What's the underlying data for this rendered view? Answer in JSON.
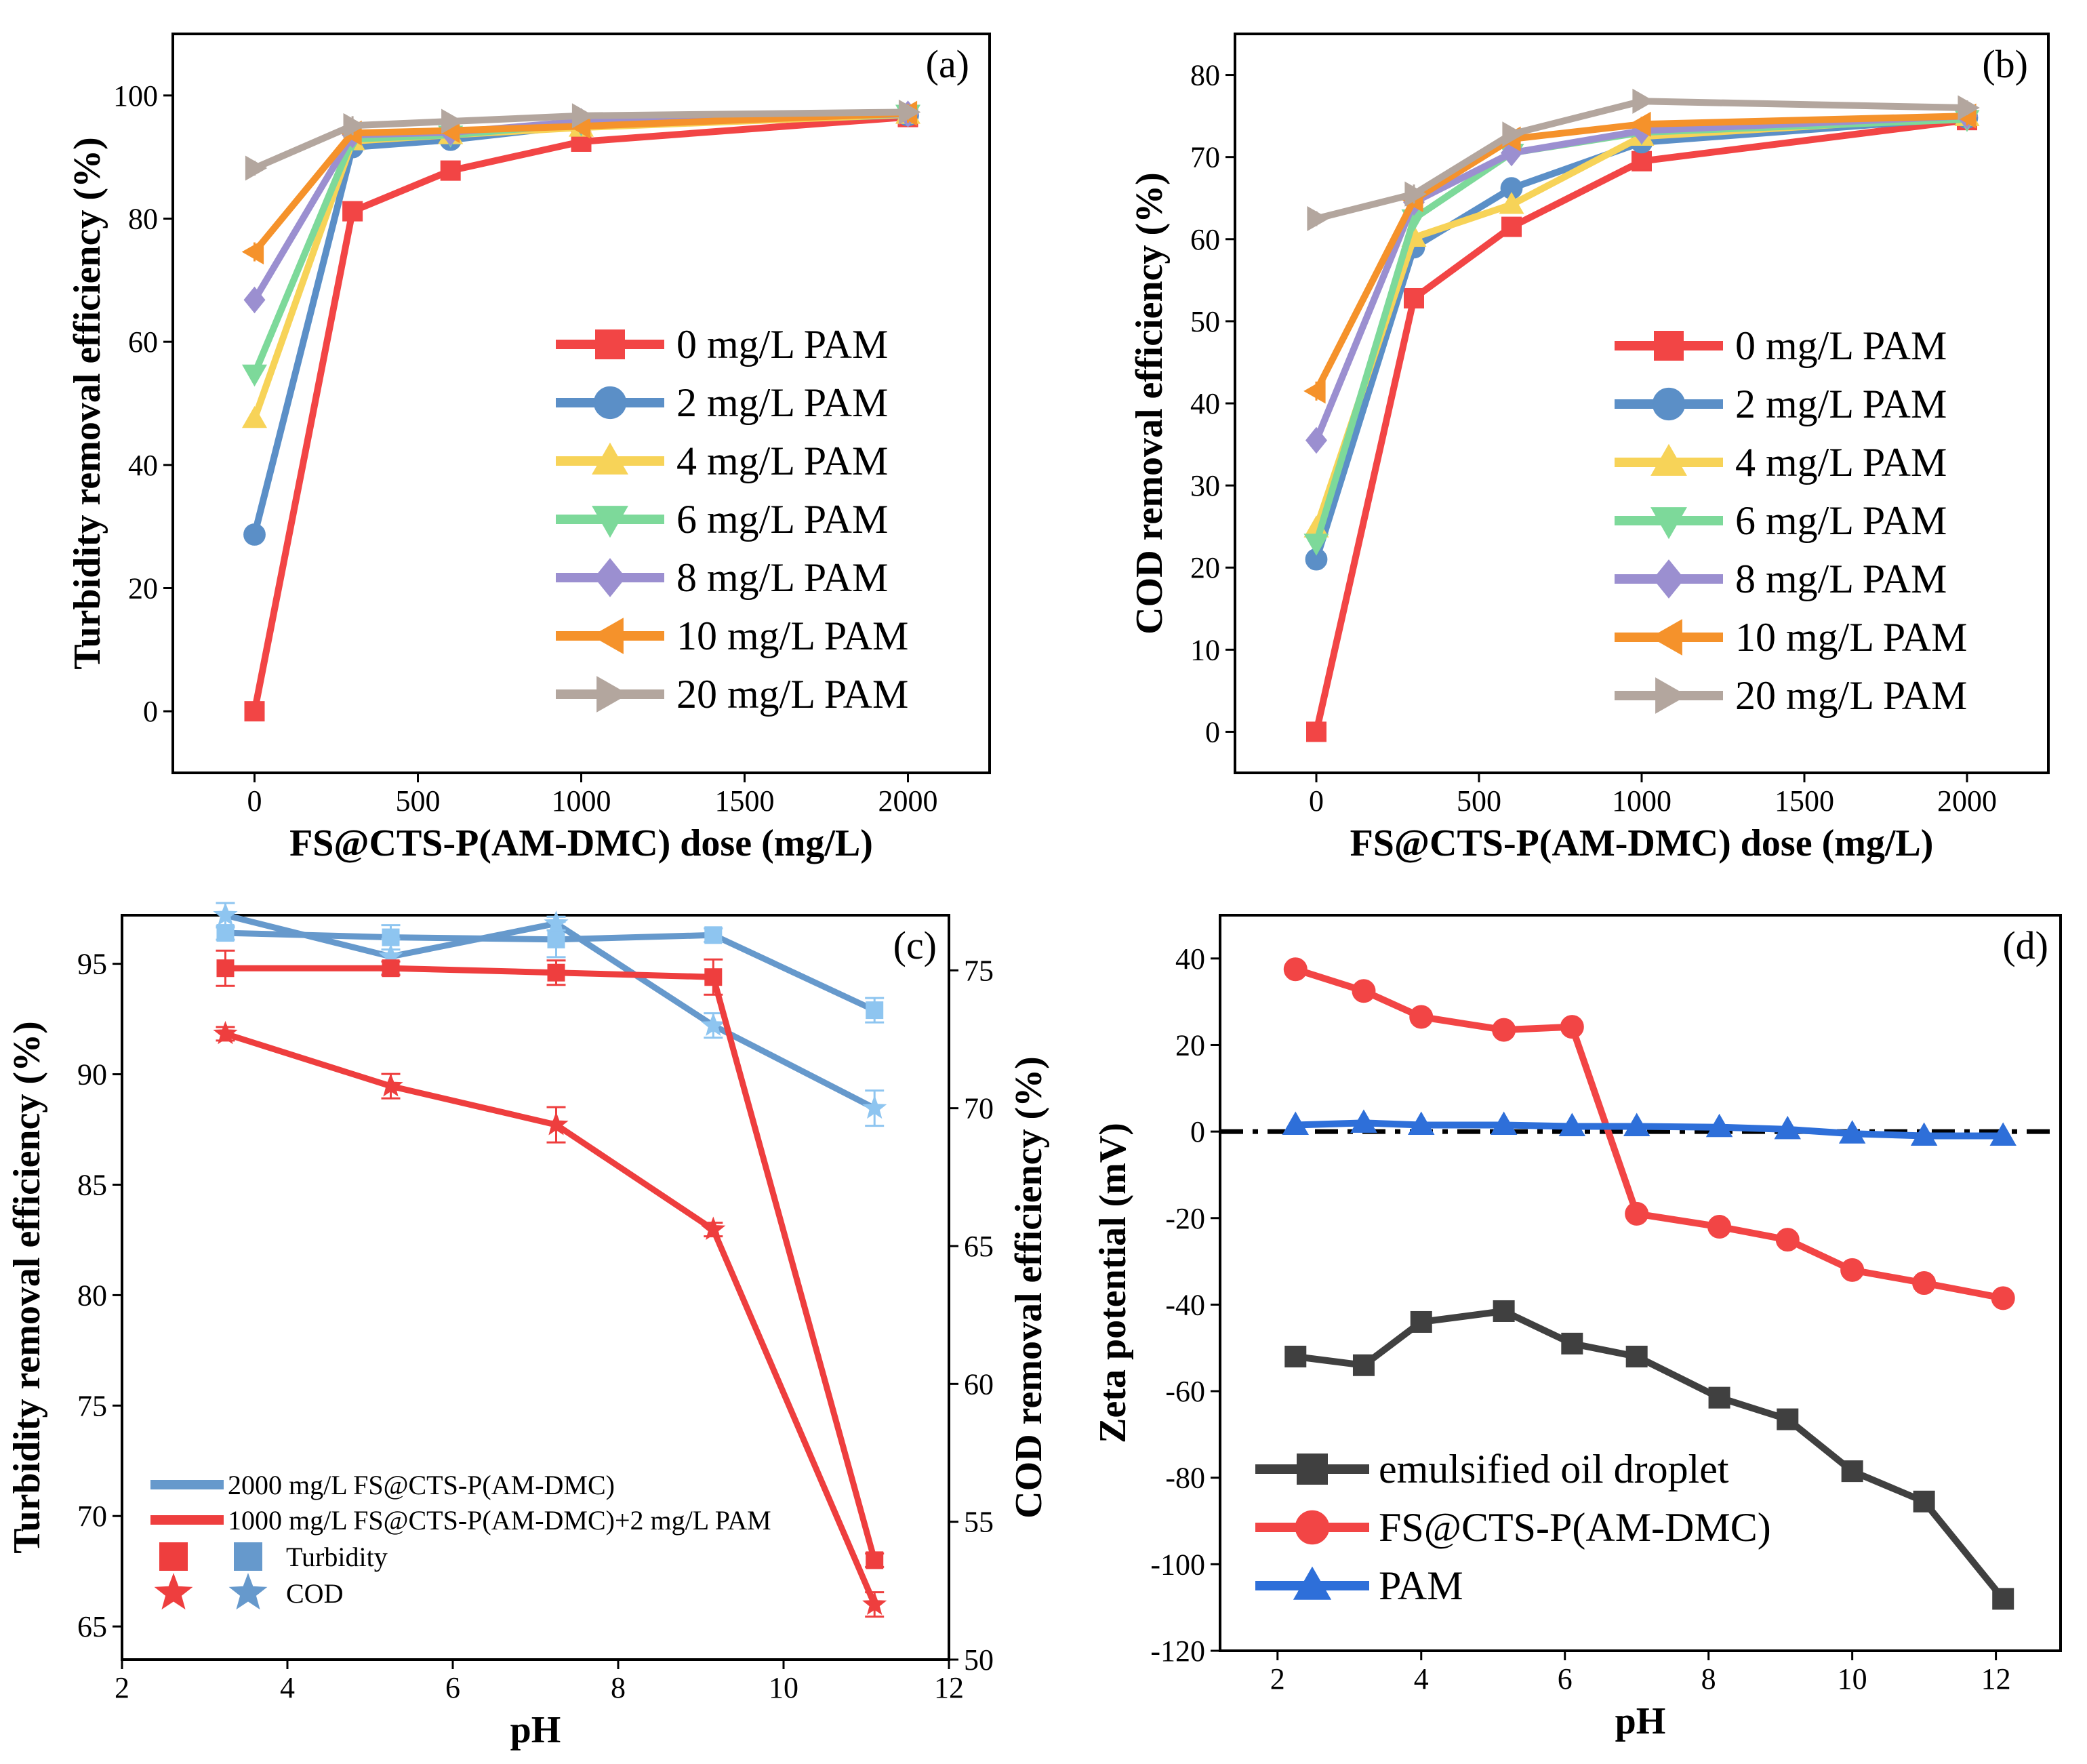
{
  "chart_data": [
    {
      "panel": "(a)",
      "type": "line",
      "xlabel": "FS@CTS-P(AM-DMC) dose (mg/L)",
      "ylabel": "Turbidity removal efficiency (%)",
      "xlim": [
        -250,
        2250
      ],
      "ylim": [
        -10,
        110
      ],
      "xticks": [
        0,
        500,
        1000,
        1500,
        2000
      ],
      "yticks": [
        0,
        20,
        40,
        60,
        80,
        100
      ],
      "x": [
        0,
        300,
        600,
        1000,
        2000
      ],
      "legend_position": "center-right",
      "series": [
        {
          "name": "0 mg/L   PAM",
          "color": "#F24545",
          "marker": "square",
          "values": [
            0,
            81.2,
            87.8,
            92.5,
            96.5
          ]
        },
        {
          "name": "2 mg/L   PAM",
          "color": "#5B8FC7",
          "marker": "circle",
          "values": [
            28.7,
            91.6,
            92.8,
            95.2,
            96.8
          ]
        },
        {
          "name": "4 mg/L   PAM",
          "color": "#F7D358",
          "marker": "triangle-up",
          "values": [
            47.5,
            92.6,
            93.6,
            94.8,
            96.9
          ]
        },
        {
          "name": "6 mg/L   PAM",
          "color": "#7DD99A",
          "marker": "triangle-down",
          "values": [
            54.8,
            92.9,
            93.6,
            95.4,
            97.0
          ]
        },
        {
          "name": "8 mg/L   PAM",
          "color": "#9B8FD0",
          "marker": "diamond",
          "values": [
            66.8,
            93.6,
            94.0,
            95.8,
            97.0
          ]
        },
        {
          "name": "10 mg/L PAM",
          "color": "#F5922B",
          "marker": "triangle-left",
          "values": [
            74.6,
            93.9,
            94.3,
            95.0,
            97.1
          ]
        },
        {
          "name": "20 mg/L PAM",
          "color": "#B3A69E",
          "marker": "triangle-right",
          "values": [
            88.2,
            95.1,
            95.8,
            96.7,
            97.3
          ]
        }
      ]
    },
    {
      "panel": "(b)",
      "type": "line",
      "xlabel": "FS@CTS-P(AM-DMC) dose (mg/L)",
      "ylabel": "COD removal efficiency (%)",
      "xlim": [
        -250,
        2250
      ],
      "ylim": [
        -5,
        85
      ],
      "xticks": [
        0,
        500,
        1000,
        1500,
        2000
      ],
      "yticks": [
        0,
        10,
        20,
        30,
        40,
        50,
        60,
        70,
        80
      ],
      "x": [
        0,
        300,
        600,
        1000,
        2000
      ],
      "legend_position": "center-right",
      "series": [
        {
          "name": "0 mg/L   PAM",
          "color": "#F24545",
          "marker": "square",
          "values": [
            0,
            52.8,
            61.5,
            69.5,
            74.5
          ]
        },
        {
          "name": "2 mg/L   PAM",
          "color": "#5B8FC7",
          "marker": "circle",
          "values": [
            21.0,
            59.0,
            66.2,
            71.8,
            74.8
          ]
        },
        {
          "name": "4 mg/L   PAM",
          "color": "#F7D358",
          "marker": "triangle-up",
          "values": [
            24.8,
            60.2,
            64.2,
            72.5,
            74.9
          ]
        },
        {
          "name": "6 mg/L   PAM",
          "color": "#7DD99A",
          "marker": "triangle-down",
          "values": [
            23.0,
            62.5,
            70.5,
            73.0,
            74.6
          ]
        },
        {
          "name": "8 mg/L   PAM",
          "color": "#9B8FD0",
          "marker": "diamond",
          "values": [
            35.5,
            64.5,
            70.5,
            73.2,
            75.0
          ]
        },
        {
          "name": "10 mg/L PAM",
          "color": "#F5922B",
          "marker": "triangle-left",
          "values": [
            41.5,
            64.8,
            72.2,
            74.0,
            75.0
          ]
        },
        {
          "name": "20 mg/L PAM",
          "color": "#B3A69E",
          "marker": "triangle-right",
          "values": [
            62.5,
            65.5,
            72.8,
            76.8,
            76.0
          ]
        }
      ]
    },
    {
      "panel": "(c)",
      "type": "line",
      "xlabel": "pH",
      "ylabel": "Turbidity removal efficiency (%)",
      "y2label": "COD removal efficiency (%)",
      "xlim": [
        2,
        12
      ],
      "ylim": [
        63.5,
        97.2
      ],
      "y2lim": [
        50,
        77
      ],
      "xticks": [
        2,
        4,
        6,
        8,
        10,
        12
      ],
      "yticks": [
        65,
        70,
        75,
        80,
        85,
        90,
        95
      ],
      "y2ticks": [
        50,
        55,
        60,
        65,
        70,
        75
      ],
      "x": [
        3.25,
        5.25,
        7.25,
        9.15,
        11.1
      ],
      "legend_position": "bottom-left",
      "series": [
        {
          "name": "2000 mg/L FS@CTS-P(AM-DMC) Turbidity",
          "axis": "left",
          "color": "#6699CC",
          "marker": "square",
          "values": [
            96.4,
            96.2,
            96.1,
            96.3,
            92.9
          ]
        },
        {
          "name": "2000 mg/L FS@CTS-P(AM-DMC) COD",
          "axis": "right",
          "color": "#6699CC",
          "marker": "star",
          "values": [
            77.0,
            75.5,
            76.7,
            73.0,
            70.0
          ]
        },
        {
          "name": "1000 mg/L FS@CTS-P(AM-DMC)+2 mg/L PAM Turbidity",
          "axis": "left",
          "color": "#EE3E3E",
          "marker": "square",
          "values": [
            94.8,
            94.8,
            94.6,
            94.4,
            68.0
          ]
        },
        {
          "name": "1000 mg/L FS@CTS-P(AM-DMC)+2 mg/L PAM COD",
          "axis": "right",
          "color": "#EE3E3E",
          "marker": "star",
          "values": [
            72.7,
            70.8,
            69.4,
            65.6,
            52.0
          ]
        }
      ],
      "legend_lines": [
        "2000 mg/L FS@CTS-P(AM-DMC)",
        "1000 mg/L FS@CTS-P(AM-DMC)+2 mg/L PAM"
      ],
      "legend_markers": [
        "Turbidity",
        "COD"
      ]
    },
    {
      "panel": "(d)",
      "type": "line",
      "xlabel": "pH",
      "ylabel": "Zeta potential (mV)",
      "xlim": [
        1.2,
        12.9
      ],
      "ylim": [
        -120,
        50
      ],
      "xticks": [
        2,
        4,
        6,
        8,
        10,
        12
      ],
      "yticks": [
        -120,
        -100,
        -80,
        -60,
        -40,
        -20,
        0,
        20,
        40
      ],
      "reference_line": 0,
      "legend_position": "bottom-left",
      "series": [
        {
          "name": "emulsified oil droplet",
          "color": "#404040",
          "marker": "square",
          "x": [
            2.25,
            3.2,
            4.0,
            5.15,
            6.1,
            7.0,
            8.15,
            9.1,
            10.0,
            11.0,
            12.1
          ],
          "values": [
            -52,
            -54,
            -44,
            -41.5,
            -49,
            -52,
            -61.5,
            -66.5,
            -78.5,
            -85.5,
            -108
          ]
        },
        {
          "name": "FS@CTS-P(AM-DMC)",
          "color": "#F24545",
          "marker": "circle",
          "x": [
            2.25,
            3.2,
            4.0,
            5.15,
            6.1,
            7.0,
            8.15,
            9.1,
            10.0,
            11.0,
            12.1
          ],
          "values": [
            37.5,
            32.5,
            26.5,
            23.5,
            24.2,
            -19,
            -22,
            -25,
            -32,
            -35,
            -38.5
          ]
        },
        {
          "name": "PAM",
          "color": "#2E6FD9",
          "marker": "triangle-up",
          "x": [
            2.25,
            3.2,
            4.0,
            5.15,
            6.1,
            7.0,
            8.15,
            9.1,
            10.0,
            11.0,
            12.1
          ],
          "values": [
            1.5,
            2.0,
            1.5,
            1.5,
            1.2,
            1.2,
            1.0,
            0.5,
            -0.5,
            -1.0,
            -1.0
          ]
        }
      ]
    }
  ]
}
